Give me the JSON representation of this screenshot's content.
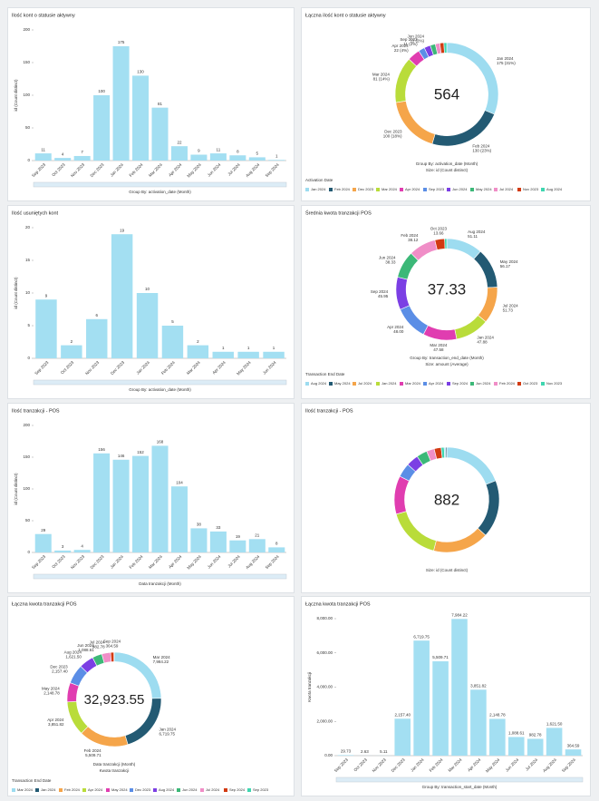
{
  "chart_data": [
    {
      "type": "bar",
      "title": "Ilość kont o statusie aktywny",
      "ylabel": "id (Count distinct)",
      "xlabel": "Group By: activation_date (Month)",
      "color": "#a3dff2",
      "categories": [
        "Sep 2023",
        "Oct 2023",
        "Nov 2023",
        "Dec 2023",
        "Jan 2024",
        "Feb 2024",
        "Mar 2024",
        "Apr 2024",
        "May 2024",
        "Jun 2024",
        "Jul 2024",
        "Aug 2024",
        "Sep 2024"
      ],
      "values": [
        11,
        4,
        7,
        100,
        175,
        130,
        81,
        22,
        9,
        11,
        8,
        5,
        1
      ],
      "ylim": [
        0,
        200
      ],
      "yticks": [
        0,
        50,
        100,
        150,
        200
      ]
    },
    {
      "type": "pie",
      "title": "Łączna ilość kont o statusie aktywny",
      "center": 564,
      "subtitles": [
        "Group By: activation_date (Month)",
        "Size: id (Count distinct)"
      ],
      "legend_title": "Activation Date",
      "legend": true,
      "categories": [
        "Jan 2024",
        "Feb 2024",
        "Dec 2023",
        "Mar 2024",
        "Apr 2024",
        "Sep 2023",
        "Jun 2024",
        "May 2024",
        "Jul 2024",
        "Nov 2023",
        "Aug 2024"
      ],
      "values": [
        175,
        130,
        100,
        81,
        22,
        11,
        11,
        9,
        8,
        7,
        5
      ],
      "value_labels": [
        "175 (31%)",
        "130 (23%)",
        "100 (18%)",
        "81 (14%)",
        "22 (4%)",
        "11 (2%)",
        "11 (2%)",
        null,
        null,
        null,
        null
      ],
      "colors": [
        "#9ddcf0",
        "#235a73",
        "#f5a54a",
        "#b9dc3a",
        "#e03db0",
        "#5b8ee6",
        "#7b3fe4",
        "#3cb878",
        "#f08ec7",
        "#d23a12",
        "#3fd6b0"
      ]
    },
    {
      "type": "bar",
      "title": "Ilość usuniętych kont",
      "ylabel": "id (Count distinct)",
      "xlabel": "Group By: activation_date (Month)",
      "color": "#a3dff2",
      "categories": [
        "Sep 2023",
        "Oct 2023",
        "Nov 2023",
        "Dec 2023",
        "Jan 2024",
        "Feb 2024",
        "Mar 2024",
        "Apr 2024",
        "May 2024",
        "Jun 2024"
      ],
      "values": [
        9,
        2,
        6,
        19,
        10,
        5,
        2,
        1,
        1,
        1
      ],
      "ylim": [
        0,
        20
      ],
      "yticks": [
        0,
        5,
        10,
        15,
        20
      ]
    },
    {
      "type": "pie",
      "title": "Średnia kwota tranzakcji POS",
      "center": 37.33,
      "subtitles": [
        "Group By: transaction_end_date (Month)",
        "Size: amount (Average)"
      ],
      "legend_title": "Transaction End Date",
      "legend": true,
      "categories": [
        "Aug 2024",
        "May 2024",
        "Jul 2024",
        "Jan 2024",
        "Mar 2024",
        "Apr 2024",
        "Sep 2024",
        "Jun 2024",
        "Feb 2024",
        "Oct 2023",
        "Nov 2023"
      ],
      "values": [
        51.11,
        56.17,
        51.73,
        47.88,
        47.58,
        48.0,
        45.95,
        38.33,
        38.12,
        13.66,
        3
      ],
      "value_labels": [
        "51.11",
        "56.17",
        "51.73",
        "47.88",
        "47.58",
        "48.00",
        "45.95",
        "38.33",
        "38.12",
        "13.66",
        null
      ],
      "colors": [
        "#9ddcf0",
        "#235a73",
        "#f5a54a",
        "#b9dc3a",
        "#e03db0",
        "#5b8ee6",
        "#7b3fe4",
        "#3cb878",
        "#f08ec7",
        "#d23a12",
        "#3fd6b0"
      ]
    },
    {
      "type": "bar",
      "title": "Ilość tranzakcji - POS",
      "ylabel": "id (Count distinct)",
      "xlabel": "Data tranzakcji (Month)",
      "color": "#a3dff2",
      "categories": [
        "Sep 2023",
        "Oct 2023",
        "Nov 2023",
        "Dec 2023",
        "Jan 2024",
        "Feb 2024",
        "Mar 2024",
        "Apr 2024",
        "May 2024",
        "Jun 2024",
        "Jul 2024",
        "Aug 2024",
        "Sep 2024"
      ],
      "values": [
        29,
        3,
        4,
        156,
        146,
        152,
        168,
        104,
        38,
        33,
        19,
        21,
        8
      ],
      "ylim": [
        0,
        200
      ],
      "yticks": [
        0,
        50,
        100,
        150,
        200
      ]
    },
    {
      "type": "pie",
      "title": "Ilość tranzakcji - POS",
      "center": 882,
      "subtitles": [
        "Size: id (Count distinct)"
      ],
      "legend": false,
      "values": [
        168,
        156,
        152,
        146,
        104,
        38,
        33,
        29,
        21,
        19,
        8,
        4,
        3
      ],
      "colors": [
        "#9ddcf0",
        "#235a73",
        "#f5a54a",
        "#b9dc3a",
        "#e03db0",
        "#5b8ee6",
        "#7b3fe4",
        "#3cb878",
        "#f08ec7",
        "#d23a12",
        "#3fd6b0",
        "#9ddcf0",
        "#235a73"
      ]
    },
    {
      "type": "pie",
      "title": "Łączna kwota tranzakcji POS",
      "center": {
        "value": 32923.55,
        "label": "32,923.55"
      },
      "subtitles": [
        "Data tranzakcji (Month)",
        "Kwota tranzakcji"
      ],
      "legend_title": "Transaction End Date",
      "legend": true,
      "categories": [
        "Mar 2024",
        "Jan 2024",
        "Feb 2024",
        "Apr 2024",
        "May 2024",
        "Dec 2023",
        "Aug 2024",
        "Jun 2024",
        "Jul 2024",
        "Sep 2024",
        "Sep 2023"
      ],
      "values": [
        7984.22,
        6719.75,
        5509.71,
        3851.82,
        2148.78,
        2157.4,
        1621.5,
        1088.61,
        982.78,
        364.59,
        29.73
      ],
      "value_labels": [
        "7,984.22",
        "6,719.75",
        "5,509.71",
        "3,851.82",
        "2,148.78",
        "2,157.40",
        "1,621.50",
        "1,088.61",
        "982.78",
        "364.59",
        null
      ],
      "colors": [
        "#9ddcf0",
        "#235a73",
        "#f5a54a",
        "#b9dc3a",
        "#e03db0",
        "#5b8ee6",
        "#7b3fe4",
        "#3cb878",
        "#f08ec7",
        "#d23a12",
        "#3fd6b0"
      ]
    },
    {
      "type": "bar",
      "title": "Łączna kwota tranzakcji POS",
      "ylabel": "Kwota tranzakcji",
      "xlabel": "Group By: transaction_start_date (Month)",
      "color": "#a3dff2",
      "categories": [
        "Sep 2023",
        "Oct 2023",
        "Nov 2023",
        "Dec 2023",
        "Jan 2024",
        "Feb 2024",
        "Mar 2024",
        "Apr 2024",
        "May 2024",
        "Jun 2024",
        "Jul 2024",
        "Aug 2024",
        "Sep 2024"
      ],
      "values": [
        29.73,
        2.63,
        5.11,
        2157.4,
        6719.75,
        5509.71,
        7984.22,
        3851.82,
        2148.78,
        1088.61,
        982.78,
        1621.5,
        364.59
      ],
      "value_labels": [
        "29.73",
        "2.63",
        "5.11",
        "2,157.40",
        "6,719.75",
        "5,509.71",
        "7,984.22",
        "3,851.82",
        "2,148.78",
        "1,088.61",
        "982.78",
        "1,621.50",
        "364.59"
      ],
      "ylim": [
        0,
        8000
      ],
      "yticks": [
        {
          "value": 0,
          "label": "0.00"
        },
        {
          "value": 2000,
          "label": "2,000.00"
        },
        {
          "value": 4000,
          "label": "4,000.00"
        },
        {
          "value": 6000,
          "label": "6,000.00"
        },
        {
          "value": 8000,
          "label": "8,000.00"
        }
      ]
    }
  ]
}
